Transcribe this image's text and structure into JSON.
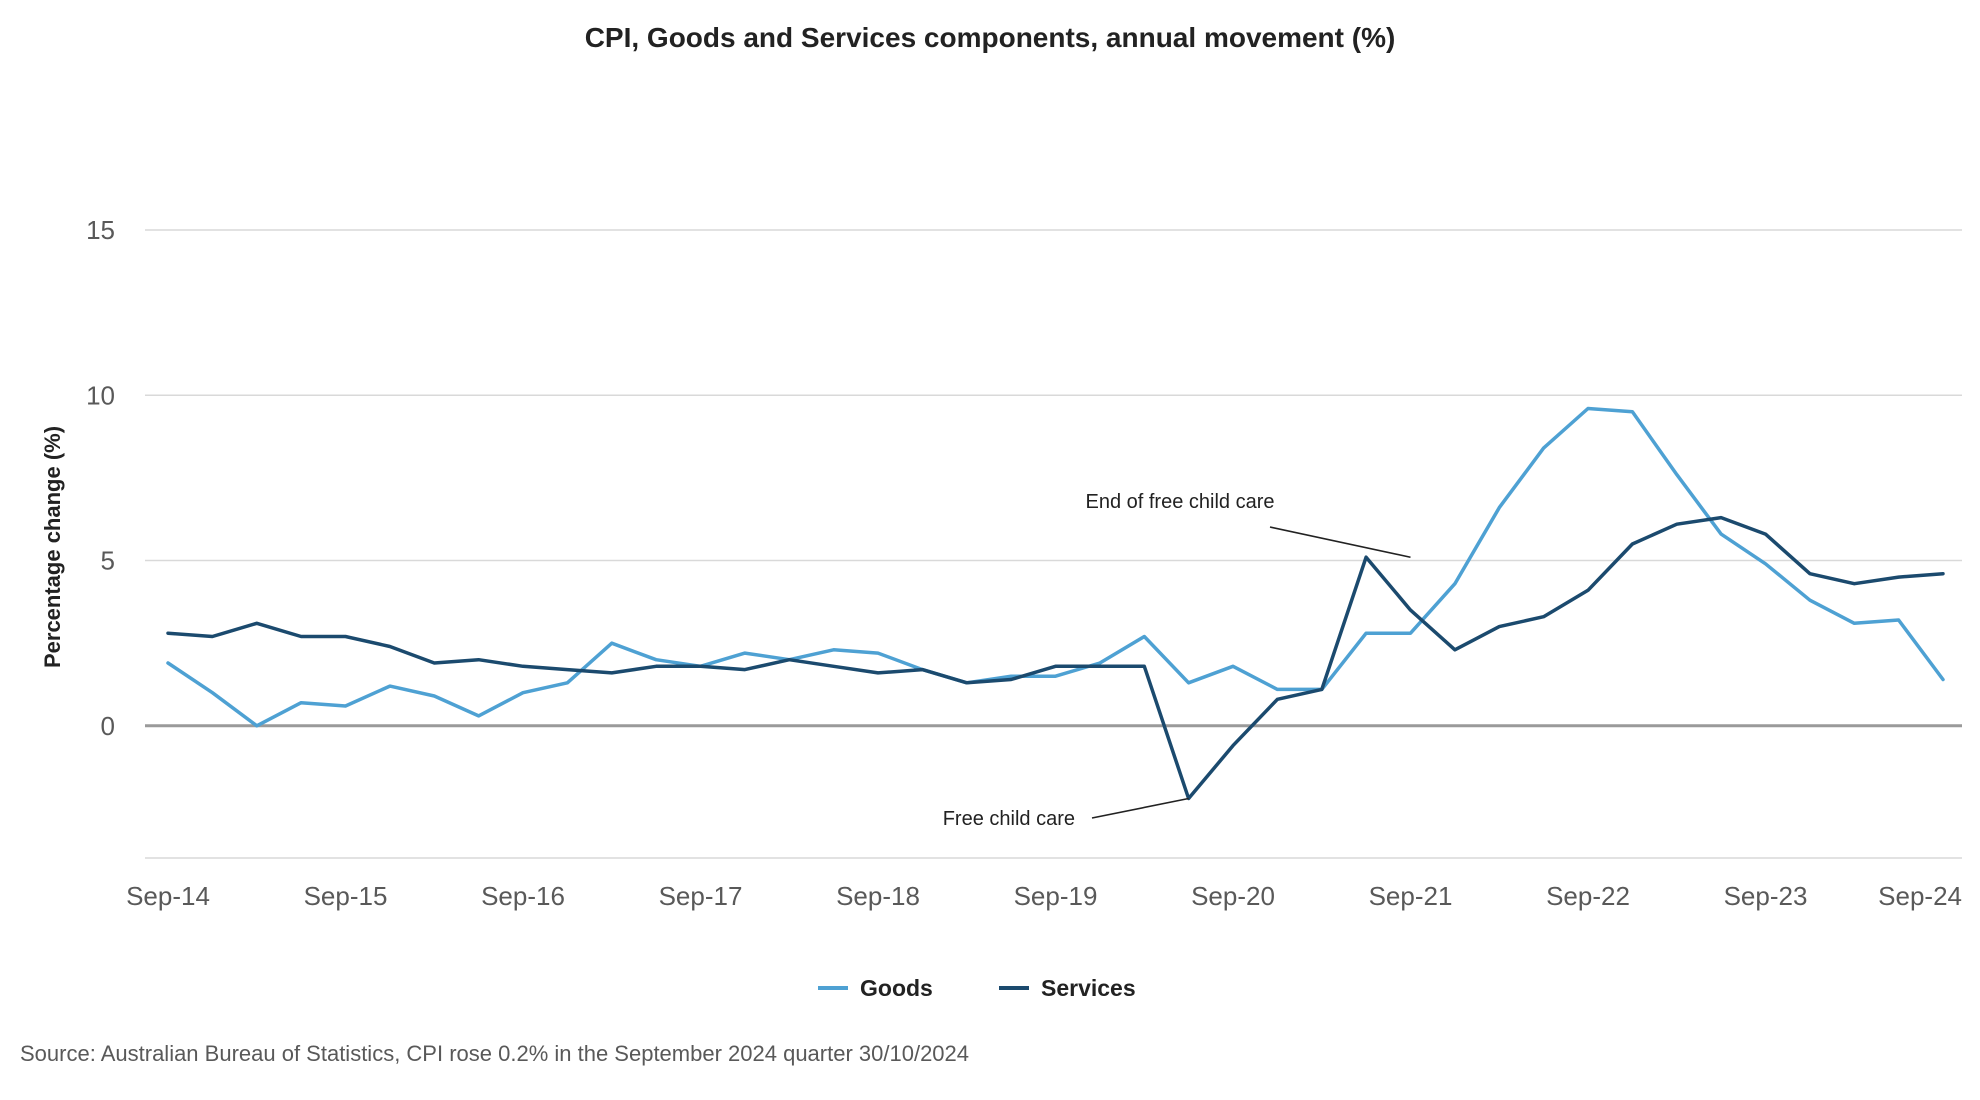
{
  "chart_data": {
    "type": "line",
    "title": "CPI, Goods and Services components, annual movement (%)",
    "ylabel": "Percentage change (%)",
    "xlabel": "",
    "ylim": [
      -4,
      15
    ],
    "yticks": [
      0,
      5,
      10,
      15
    ],
    "x_tick_labels": [
      "Sep-14",
      "Sep-15",
      "Sep-16",
      "Sep-17",
      "Sep-18",
      "Sep-19",
      "Sep-20",
      "Sep-21",
      "Sep-22",
      "Sep-23",
      "Sep-24"
    ],
    "x": [
      "Sep-14",
      "Dec-14",
      "Mar-15",
      "Jun-15",
      "Sep-15",
      "Dec-15",
      "Mar-16",
      "Jun-16",
      "Sep-16",
      "Dec-16",
      "Mar-17",
      "Jun-17",
      "Sep-17",
      "Dec-17",
      "Mar-18",
      "Jun-18",
      "Sep-18",
      "Dec-18",
      "Mar-19",
      "Jun-19",
      "Sep-19",
      "Dec-19",
      "Mar-20",
      "Jun-20",
      "Sep-20",
      "Dec-20",
      "Mar-21",
      "Jun-21",
      "Sep-21",
      "Dec-21",
      "Mar-22",
      "Jun-22",
      "Sep-22",
      "Dec-22",
      "Mar-23",
      "Jun-23",
      "Sep-23",
      "Dec-23",
      "Mar-24",
      "Jun-24",
      "Sep-24"
    ],
    "series": [
      {
        "name": "Goods",
        "color": "#4ea1d3",
        "values": [
          1.9,
          1.0,
          0.0,
          0.7,
          0.6,
          1.2,
          0.9,
          0.3,
          1.0,
          1.3,
          2.5,
          2.0,
          1.8,
          2.2,
          2.0,
          2.3,
          2.2,
          1.7,
          1.3,
          1.5,
          1.5,
          1.9,
          2.7,
          1.3,
          1.8,
          1.1,
          1.1,
          2.8,
          2.8,
          4.3,
          6.6,
          8.4,
          9.6,
          9.5,
          7.6,
          5.8,
          4.9,
          3.8,
          3.1,
          3.2,
          1.4
        ]
      },
      {
        "name": "Services",
        "color": "#1b4a6e",
        "values": [
          2.8,
          2.7,
          3.1,
          2.7,
          2.7,
          2.4,
          1.9,
          2.0,
          1.8,
          1.7,
          1.6,
          1.8,
          1.8,
          1.7,
          2.0,
          1.8,
          1.6,
          1.7,
          1.3,
          1.4,
          1.8,
          1.8,
          1.8,
          -2.2,
          -0.6,
          0.8,
          1.1,
          5.1,
          3.5,
          2.3,
          3.0,
          3.3,
          4.1,
          5.5,
          6.1,
          6.3,
          5.8,
          4.6,
          4.3,
          4.5,
          4.6
        ]
      }
    ],
    "annotations": [
      {
        "text": "End of free child care",
        "x": "Sep-21",
        "y": 5.1
      },
      {
        "text": "Free child care",
        "x": "Jun-20",
        "y": -2.2
      }
    ],
    "grid": true,
    "legend_position": "bottom"
  },
  "footer": {
    "source": "Source: Australian Bureau of Statistics, CPI rose 0.2% in the September 2024 quarter 30/10/2024"
  }
}
